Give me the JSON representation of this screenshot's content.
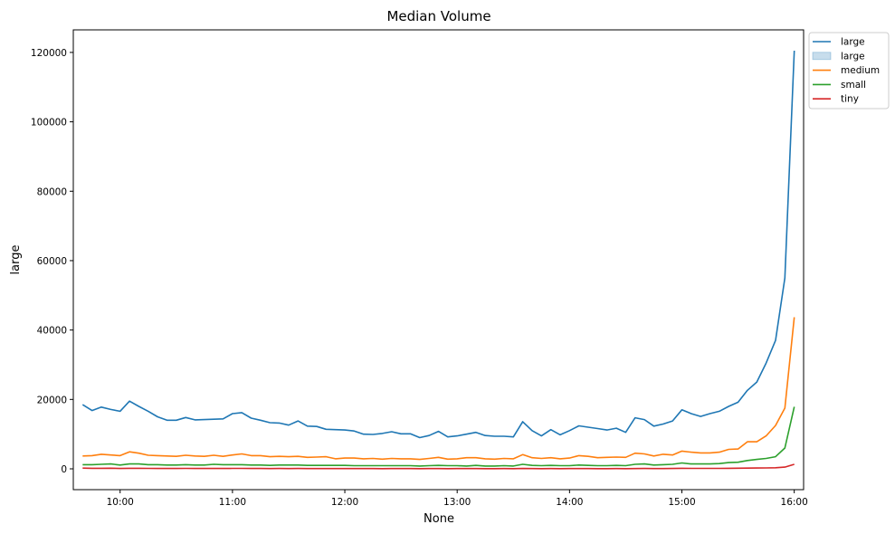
{
  "chart_data": {
    "type": "line",
    "title": "Median Volume",
    "xlabel": "None",
    "ylabel": "large",
    "x_ticks": [
      "10:00",
      "11:00",
      "12:00",
      "13:00",
      "14:00",
      "15:00",
      "16:00"
    ],
    "y_ticks": [
      "0",
      "20000",
      "40000",
      "60000",
      "80000",
      "100000",
      "120000"
    ],
    "xlim": [
      "09:35",
      "16:05"
    ],
    "ylim": [
      -6000,
      126500
    ],
    "grid": false,
    "legend_position": "upper right, outside plot",
    "x": [
      "09:40",
      "09:45",
      "09:50",
      "09:55",
      "10:00",
      "10:05",
      "10:10",
      "10:15",
      "10:20",
      "10:25",
      "10:30",
      "10:35",
      "10:40",
      "10:45",
      "10:50",
      "10:55",
      "11:00",
      "11:05",
      "11:10",
      "11:15",
      "11:20",
      "11:25",
      "11:30",
      "11:35",
      "11:40",
      "11:45",
      "11:50",
      "11:55",
      "12:00",
      "12:05",
      "12:10",
      "12:15",
      "12:20",
      "12:25",
      "12:30",
      "12:35",
      "12:40",
      "12:45",
      "12:50",
      "12:55",
      "13:00",
      "13:05",
      "13:10",
      "13:15",
      "13:20",
      "13:25",
      "13:30",
      "13:35",
      "13:40",
      "13:45",
      "13:50",
      "13:55",
      "14:00",
      "14:05",
      "14:10",
      "14:15",
      "14:20",
      "14:25",
      "14:30",
      "14:35",
      "14:40",
      "14:45",
      "14:50",
      "14:55",
      "15:00",
      "15:05",
      "15:10",
      "15:15",
      "15:20",
      "15:25",
      "15:30",
      "15:35",
      "15:40",
      "15:45",
      "15:50",
      "15:55",
      "16:00"
    ],
    "legend": [
      {
        "label": "large",
        "kind": "line",
        "color": "#1f77b4"
      },
      {
        "label": "large",
        "kind": "band",
        "color": "#1f77b4"
      },
      {
        "label": "medium",
        "kind": "line",
        "color": "#ff7f0e"
      },
      {
        "label": "small",
        "kind": "line",
        "color": "#2ca02c"
      },
      {
        "label": "tiny",
        "kind": "line",
        "color": "#d62728"
      }
    ],
    "series": [
      {
        "name": "large",
        "color": "#1f77b4",
        "values": [
          18500,
          16800,
          17800,
          17100,
          16600,
          19500,
          18000,
          16600,
          15000,
          14000,
          14000,
          14800,
          14100,
          14200,
          14300,
          14400,
          15900,
          16200,
          14600,
          14000,
          13300,
          13200,
          12600,
          13800,
          12300,
          12200,
          11400,
          11300,
          11200,
          10900,
          10000,
          9900,
          10200,
          10700,
          10100,
          10100,
          9000,
          9600,
          10800,
          9200,
          9500,
          10000,
          10500,
          9600,
          9400,
          9400,
          9200,
          13600,
          11000,
          9500,
          11300,
          9800,
          11000,
          12400,
          12000,
          11600,
          11200,
          11700,
          10500,
          14700,
          14200,
          12300,
          12900,
          13800,
          17000,
          15900,
          15100,
          15900,
          16600,
          18000,
          19200,
          22600,
          25000,
          30500,
          37000,
          55000,
          120500
        ]
      },
      {
        "name": "medium",
        "color": "#ff7f0e",
        "values": [
          3700,
          3800,
          4200,
          4000,
          3800,
          4900,
          4500,
          3900,
          3800,
          3700,
          3600,
          3900,
          3700,
          3600,
          3900,
          3600,
          4000,
          4300,
          3800,
          3800,
          3500,
          3600,
          3500,
          3600,
          3300,
          3400,
          3500,
          2900,
          3100,
          3100,
          2900,
          3000,
          2800,
          3000,
          2900,
          2900,
          2700,
          3000,
          3300,
          2800,
          2900,
          3200,
          3200,
          2900,
          2800,
          3000,
          2900,
          4100,
          3200,
          3000,
          3200,
          2900,
          3100,
          3800,
          3600,
          3200,
          3300,
          3400,
          3300,
          4500,
          4300,
          3700,
          4200,
          4000,
          5100,
          4800,
          4600,
          4600,
          4800,
          5600,
          5700,
          7800,
          7800,
          9500,
          12500,
          17500,
          43700
        ]
      },
      {
        "name": "small",
        "color": "#2ca02c",
        "values": [
          1200,
          1200,
          1300,
          1400,
          1100,
          1400,
          1400,
          1200,
          1200,
          1100,
          1100,
          1200,
          1100,
          1100,
          1300,
          1200,
          1200,
          1200,
          1100,
          1100,
          1000,
          1100,
          1100,
          1100,
          1000,
          1000,
          1000,
          1000,
          1000,
          900,
          900,
          900,
          900,
          900,
          900,
          900,
          800,
          900,
          1000,
          900,
          900,
          800,
          1000,
          800,
          800,
          900,
          800,
          1300,
          1000,
          900,
          1000,
          900,
          900,
          1100,
          1000,
          900,
          900,
          1000,
          900,
          1300,
          1400,
          1100,
          1200,
          1300,
          1700,
          1400,
          1400,
          1400,
          1500,
          1800,
          1900,
          2400,
          2700,
          3000,
          3500,
          6000,
          17900
        ]
      },
      {
        "name": "tiny",
        "color": "#d62728",
        "values": [
          200,
          150,
          150,
          180,
          100,
          150,
          160,
          120,
          110,
          100,
          100,
          120,
          100,
          100,
          110,
          100,
          120,
          130,
          100,
          100,
          80,
          100,
          90,
          100,
          80,
          80,
          90,
          70,
          70,
          80,
          70,
          70,
          60,
          70,
          70,
          70,
          60,
          70,
          80,
          60,
          70,
          70,
          80,
          60,
          60,
          70,
          60,
          100,
          70,
          60,
          70,
          60,
          70,
          80,
          80,
          60,
          60,
          70,
          60,
          90,
          100,
          80,
          90,
          100,
          150,
          130,
          130,
          130,
          140,
          160,
          170,
          200,
          230,
          260,
          300,
          500,
          1300
        ]
      }
    ]
  }
}
